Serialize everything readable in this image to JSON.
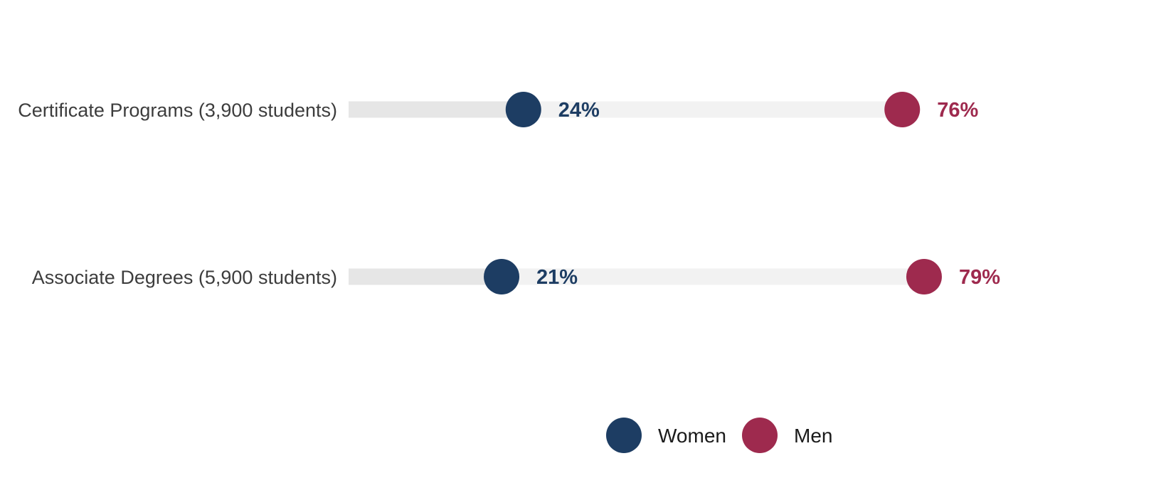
{
  "chart_data": {
    "type": "dumbbell",
    "categories": [
      "Certificate Programs (3,900 students)",
      "Associate Degrees (5,900 students)"
    ],
    "series": [
      {
        "name": "Women",
        "values": [
          24,
          21
        ],
        "labels": [
          "24%",
          "21%"
        ],
        "color": "#1d3d63"
      },
      {
        "name": "Men",
        "values": [
          76,
          79
        ],
        "labels": [
          "76%",
          "79%"
        ],
        "color": "#9e2a4e"
      }
    ],
    "xlim": [
      0,
      100
    ],
    "unit": "%",
    "grid": false,
    "legend": {
      "position": "bottom",
      "entries": [
        "Women",
        "Men"
      ]
    },
    "track_colors": {
      "left": "#e6e6e6",
      "right": "#f2f2f2"
    }
  }
}
